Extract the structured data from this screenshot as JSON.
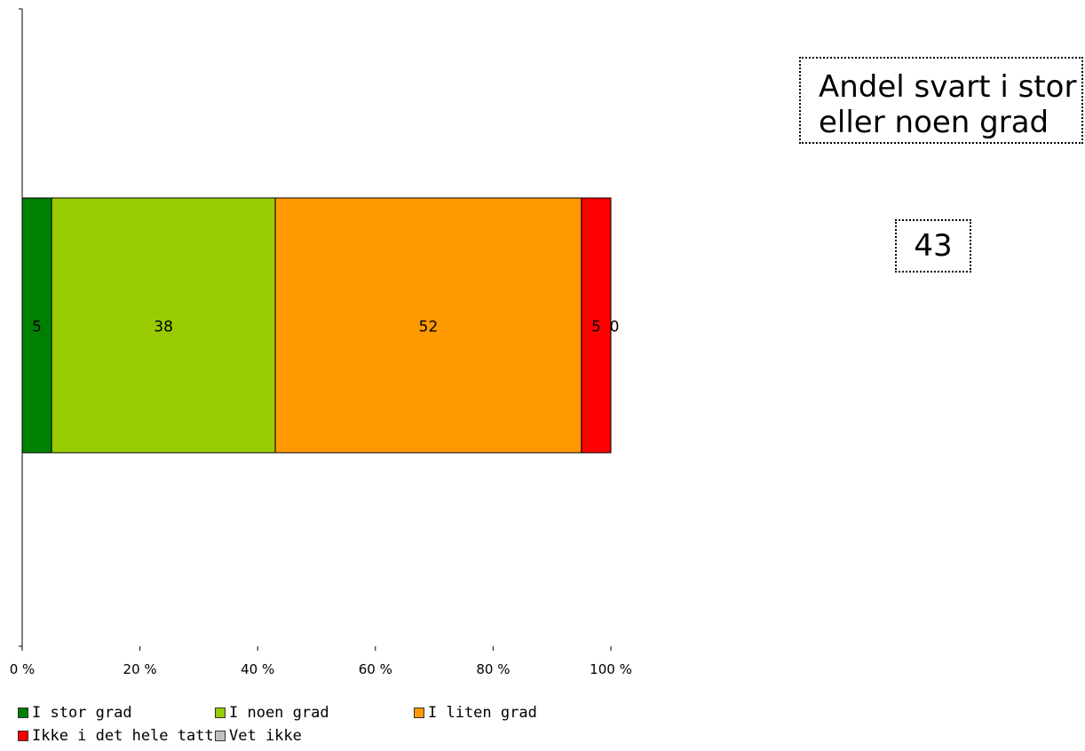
{
  "chart_data": {
    "type": "bar",
    "orientation": "horizontal",
    "stacked": true,
    "categories": [
      ""
    ],
    "series": [
      {
        "name": "I stor grad",
        "values": [
          5
        ],
        "color": "#008000"
      },
      {
        "name": "I noen grad",
        "values": [
          38
        ],
        "color": "#99CC00"
      },
      {
        "name": "I liten grad",
        "values": [
          52
        ],
        "color": "#FF9900"
      },
      {
        "name": "Ikke i det hele tatt",
        "values": [
          5
        ],
        "color": "#FF0000"
      },
      {
        "name": "Vet ikke",
        "values": [
          0
        ],
        "color": "#C0C0C0"
      }
    ],
    "data_labels": [
      "5",
      "38",
      "52",
      "5",
      "0"
    ],
    "xticks": [
      "0 %",
      "20 %",
      "40 %",
      "60 %",
      "80 %",
      "100 %"
    ],
    "xlim": [
      0,
      100
    ],
    "grid": false,
    "legend_position": "bottom"
  },
  "side_panel": {
    "label": "Andel svart i stor eller noen grad",
    "value": "43"
  }
}
